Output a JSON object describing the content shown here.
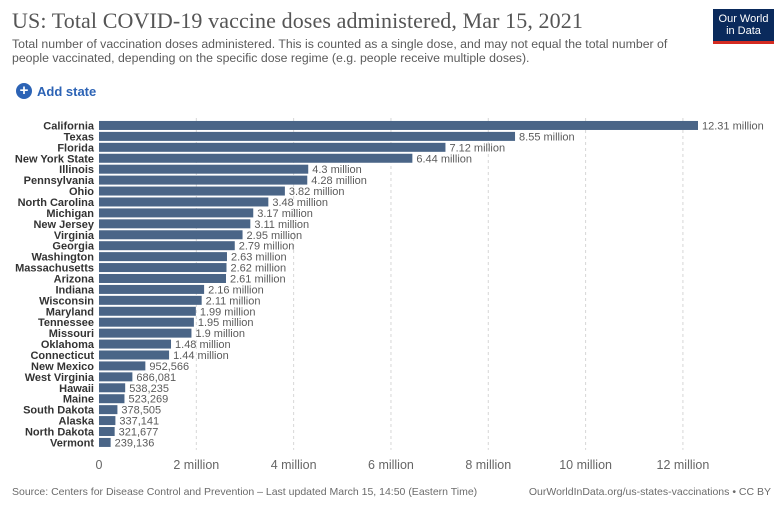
{
  "header": {
    "title": "US: Total COVID-19 vaccine doses administered, Mar 15, 2021",
    "subtitle": "Total number of vaccination doses administered. This is counted as a single dose, and may not equal the total number of people vaccinated, depending on the specific dose regime (e.g. people receive multiple doses).",
    "logo_line1": "Our World",
    "logo_line2": "in Data"
  },
  "controls": {
    "add_state_label": "Add state"
  },
  "colors": {
    "bar": "#4a6587",
    "grid": "#d6d6d6",
    "label": "#333333",
    "value": "#5b5b5b"
  },
  "chart_data": {
    "type": "bar",
    "orientation": "horizontal",
    "title": "US: Total COVID-19 vaccine doses administered, Mar 15, 2021",
    "categories": [
      "California",
      "Texas",
      "Florida",
      "New York State",
      "Illinois",
      "Pennsylvania",
      "Ohio",
      "North Carolina",
      "Michigan",
      "New Jersey",
      "Virginia",
      "Georgia",
      "Washington",
      "Massachusetts",
      "Arizona",
      "Indiana",
      "Wisconsin",
      "Maryland",
      "Tennessee",
      "Missouri",
      "Oklahoma",
      "Connecticut",
      "New Mexico",
      "West Virginia",
      "Hawaii",
      "Maine",
      "South Dakota",
      "Alaska",
      "North Dakota",
      "Vermont"
    ],
    "values": [
      12310000,
      8550000,
      7120000,
      6440000,
      4300000,
      4280000,
      3820000,
      3480000,
      3170000,
      3110000,
      2950000,
      2790000,
      2630000,
      2620000,
      2610000,
      2160000,
      2110000,
      1990000,
      1950000,
      1900000,
      1480000,
      1440000,
      952566,
      686081,
      538235,
      523269,
      378505,
      337141,
      321677,
      239136
    ],
    "value_labels": [
      "12.31 million",
      "8.55 million",
      "7.12 million",
      "6.44 million",
      "4.3 million",
      "4.28 million",
      "3.82 million",
      "3.48 million",
      "3.17 million",
      "3.11 million",
      "2.95 million",
      "2.79 million",
      "2.63 million",
      "2.62 million",
      "2.61 million",
      "2.16 million",
      "2.11 million",
      "1.99 million",
      "1.95 million",
      "1.9 million",
      "1.48 million",
      "1.44 million",
      "952,566",
      "686,081",
      "538,235",
      "523,269",
      "378,505",
      "337,141",
      "321,677",
      "239,136"
    ],
    "xlim": [
      0,
      12310000
    ],
    "xticks": [
      0,
      2000000,
      4000000,
      6000000,
      8000000,
      10000000,
      12000000
    ],
    "xtick_labels": [
      "0",
      "2 million",
      "4 million",
      "6 million",
      "8 million",
      "10 million",
      "12 million"
    ],
    "grid": "vertical dashed"
  },
  "footer": {
    "source": "Source: Centers for Disease Control and Prevention – Last updated March 15, 14:50 (Eastern Time)",
    "url_license": "OurWorldInData.org/us-states-vaccinations • CC BY"
  }
}
